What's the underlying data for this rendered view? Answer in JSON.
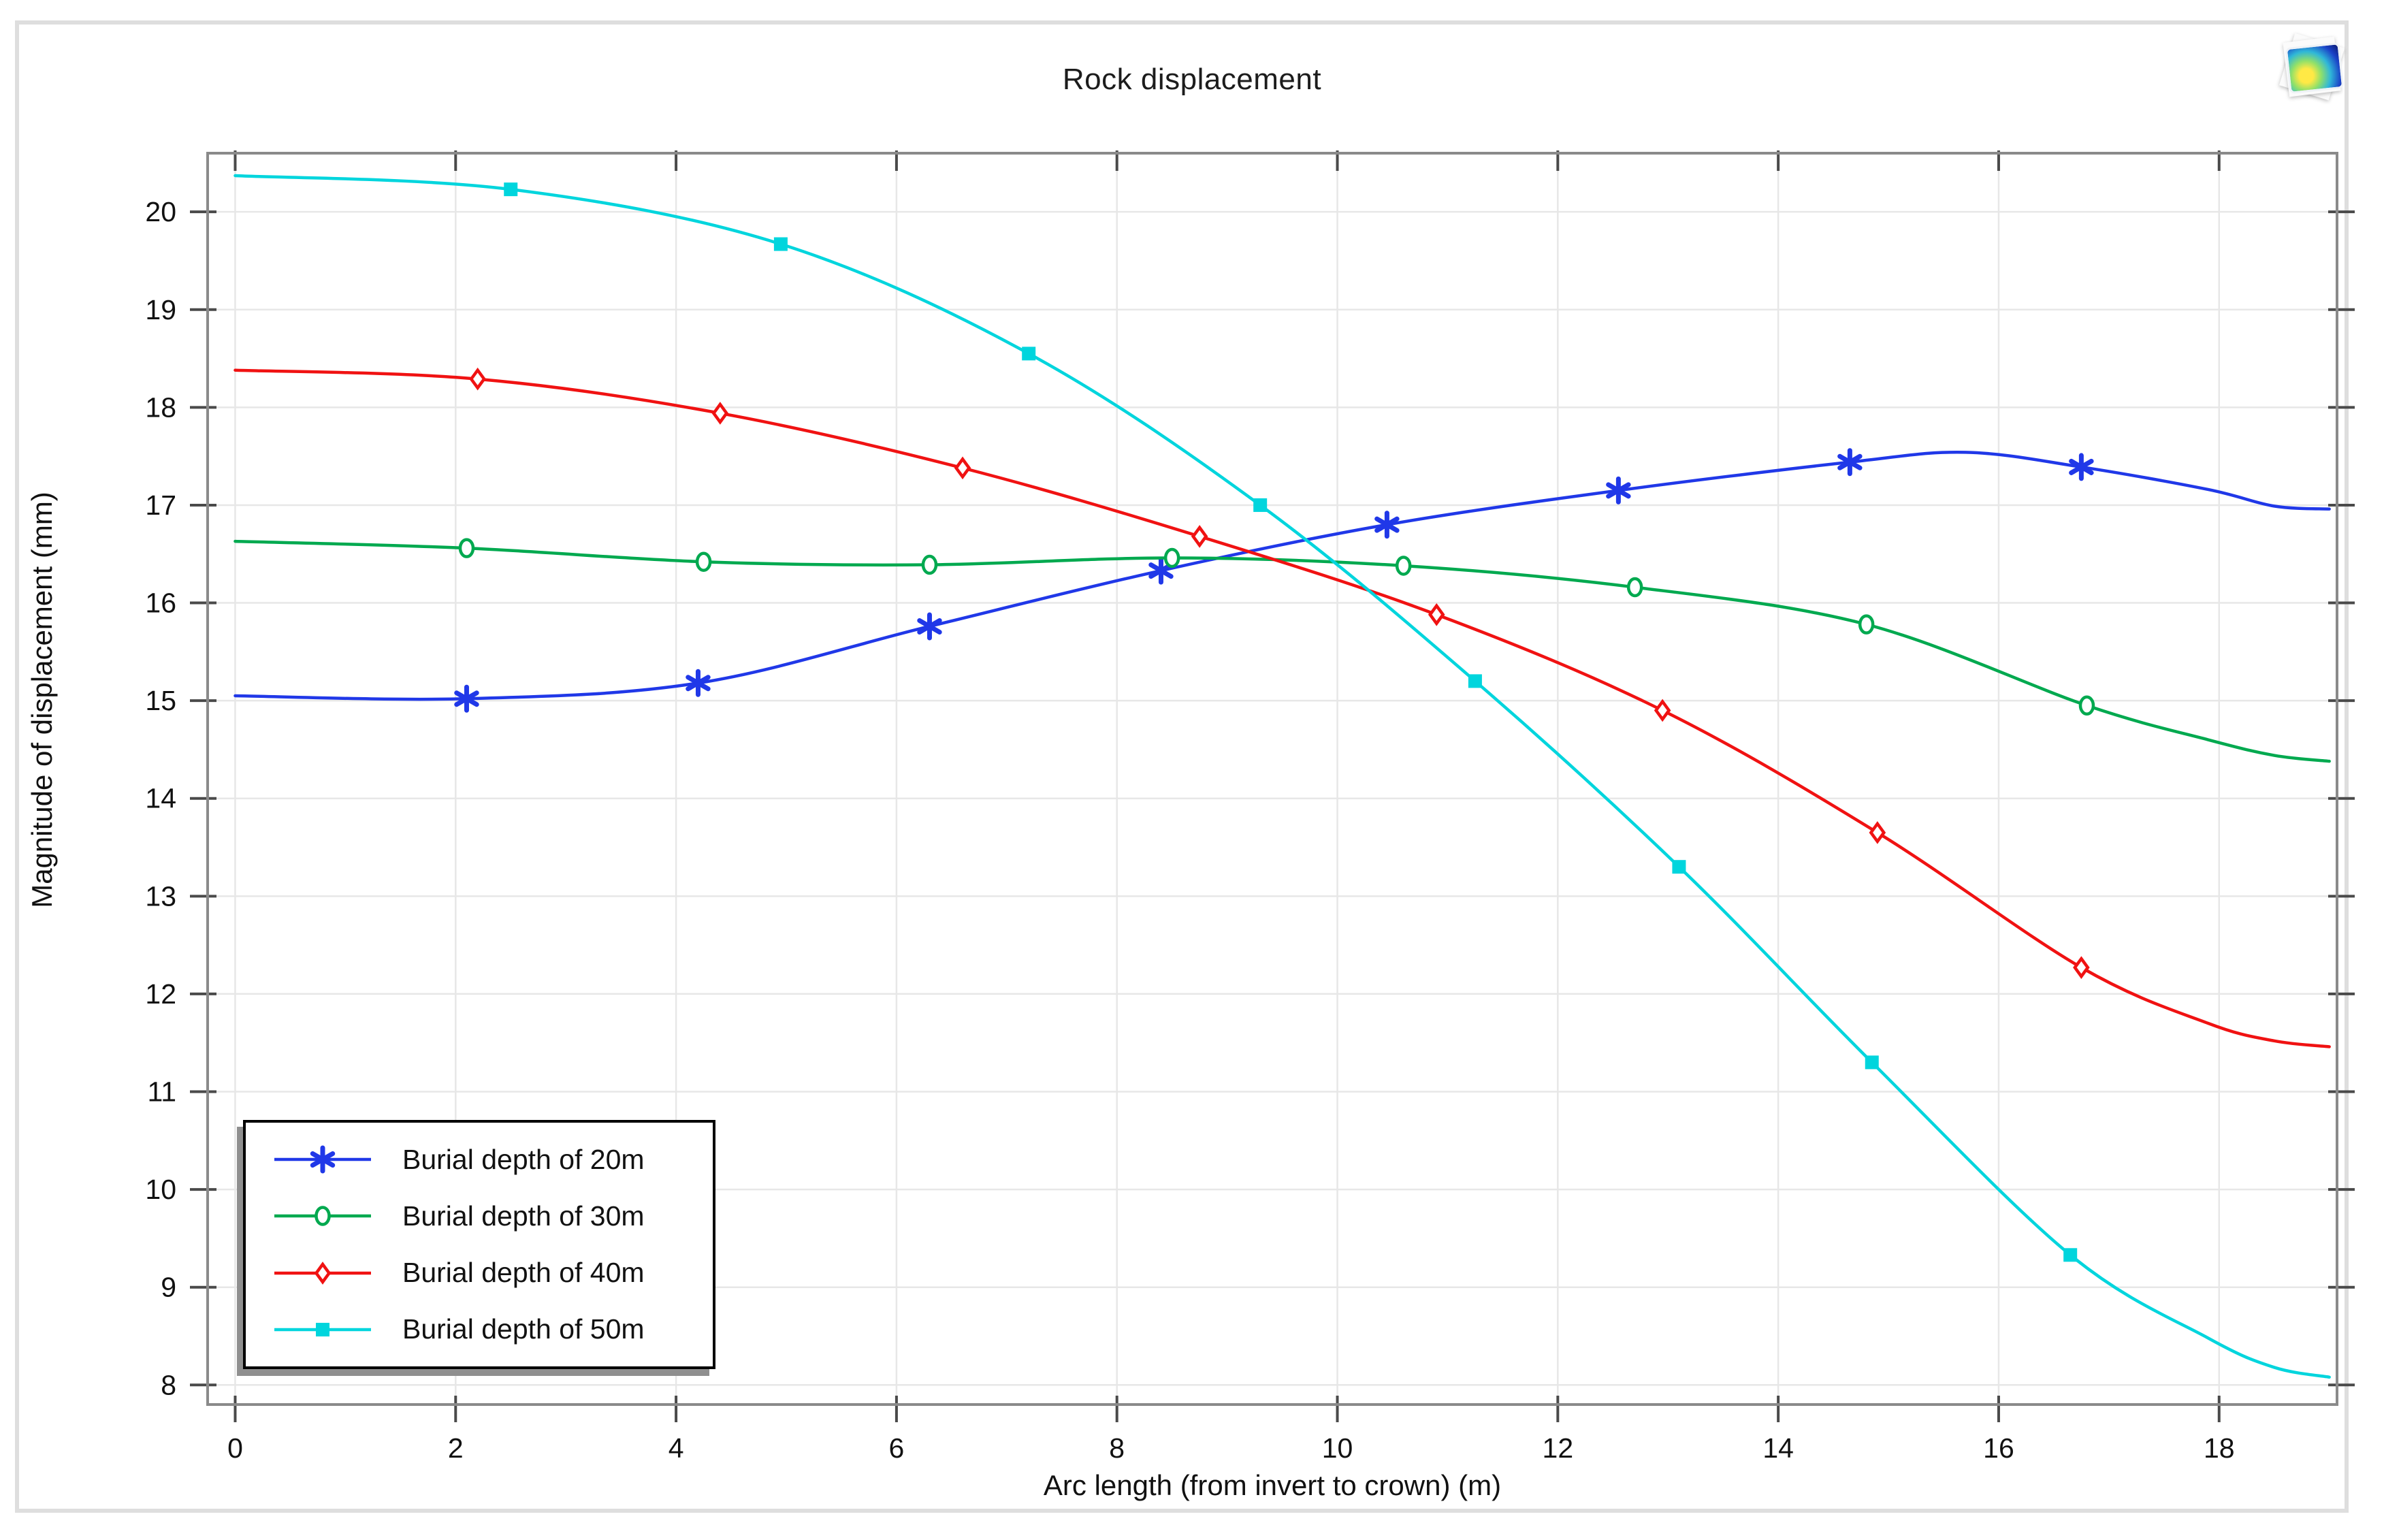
{
  "window": {
    "title": "Rock displacement",
    "icon_name": "comsol-graphics-icon"
  },
  "chart_data": {
    "type": "line",
    "title": "Rock displacement",
    "xlabel": "Arc length (from invert to crown) (m)",
    "ylabel": "Magnitude of displacement (mm)",
    "xlim": [
      -0.25,
      19.07
    ],
    "ylim": [
      7.8,
      20.6
    ],
    "xticks": [
      0,
      2,
      4,
      6,
      8,
      10,
      12,
      14,
      16,
      18
    ],
    "yticks": [
      8,
      9,
      10,
      11,
      12,
      13,
      14,
      15,
      16,
      17,
      18,
      19,
      20
    ],
    "grid": true,
    "legend_position": "bottom-left",
    "colors": {
      "grid": "#e7e7e7",
      "frame": "#8a8a8a",
      "tick": "#4a4a4a",
      "text": "#111111"
    },
    "series": [
      {
        "name": "Burial depth of 20m",
        "color": "#2038e8",
        "marker": "asterisk",
        "points": [
          [
            0,
            15.05
          ],
          [
            2.1,
            15.02
          ],
          [
            4.2,
            15.18
          ],
          [
            6.3,
            15.76
          ],
          [
            8.4,
            16.33
          ],
          [
            10.45,
            16.8
          ],
          [
            12.55,
            17.15
          ],
          [
            14.65,
            17.44
          ],
          [
            15.7,
            17.54
          ],
          [
            16.75,
            17.39
          ],
          [
            17.9,
            17.16
          ],
          [
            18.5,
            16.99
          ],
          [
            19.0,
            16.96
          ]
        ],
        "markers": [
          [
            2.1,
            15.02
          ],
          [
            4.2,
            15.18
          ],
          [
            6.3,
            15.76
          ],
          [
            8.4,
            16.33
          ],
          [
            10.45,
            16.8
          ],
          [
            12.55,
            17.15
          ],
          [
            14.65,
            17.44
          ],
          [
            16.75,
            17.39
          ]
        ]
      },
      {
        "name": "Burial depth of 30m",
        "color": "#00a94f",
        "marker": "circle",
        "points": [
          [
            0,
            16.63
          ],
          [
            2.1,
            16.56
          ],
          [
            4.25,
            16.42
          ],
          [
            6.3,
            16.39
          ],
          [
            8.5,
            16.46
          ],
          [
            10.6,
            16.38
          ],
          [
            12.7,
            16.16
          ],
          [
            14.8,
            15.78
          ],
          [
            16.8,
            14.95
          ],
          [
            17.9,
            14.6
          ],
          [
            18.5,
            14.44
          ],
          [
            19.0,
            14.38
          ]
        ],
        "markers": [
          [
            2.1,
            16.56
          ],
          [
            4.25,
            16.42
          ],
          [
            6.3,
            16.39
          ],
          [
            8.5,
            16.46
          ],
          [
            10.6,
            16.38
          ],
          [
            12.7,
            16.16
          ],
          [
            14.8,
            15.78
          ],
          [
            16.8,
            14.95
          ]
        ]
      },
      {
        "name": "Burial depth of 40m",
        "color": "#f01212",
        "marker": "diamond",
        "points": [
          [
            0,
            18.38
          ],
          [
            2.2,
            18.29
          ],
          [
            4.4,
            17.94
          ],
          [
            6.6,
            17.38
          ],
          [
            8.75,
            16.68
          ],
          [
            10.9,
            15.88
          ],
          [
            12.95,
            14.9
          ],
          [
            14.9,
            13.65
          ],
          [
            16.75,
            12.27
          ],
          [
            17.9,
            11.7
          ],
          [
            18.5,
            11.52
          ],
          [
            19.0,
            11.46
          ]
        ],
        "markers": [
          [
            2.2,
            18.29
          ],
          [
            4.4,
            17.94
          ],
          [
            6.6,
            17.38
          ],
          [
            8.75,
            16.68
          ],
          [
            10.9,
            15.88
          ],
          [
            12.95,
            14.9
          ],
          [
            14.9,
            13.65
          ],
          [
            16.75,
            12.27
          ]
        ]
      },
      {
        "name": "Burial depth of 50m",
        "color": "#00d5dd",
        "marker": "square",
        "points": [
          [
            0,
            20.37
          ],
          [
            2.5,
            20.23
          ],
          [
            4.95,
            19.67
          ],
          [
            7.2,
            18.55
          ],
          [
            9.3,
            17.0
          ],
          [
            11.25,
            15.2
          ],
          [
            13.1,
            13.3
          ],
          [
            14.85,
            11.3
          ],
          [
            16.65,
            9.33
          ],
          [
            17.9,
            8.48
          ],
          [
            18.5,
            8.18
          ],
          [
            19.0,
            8.08
          ]
        ],
        "markers": [
          [
            2.5,
            20.23
          ],
          [
            4.95,
            19.67
          ],
          [
            7.2,
            18.55
          ],
          [
            9.3,
            17.0
          ],
          [
            11.25,
            15.2
          ],
          [
            13.1,
            13.3
          ],
          [
            14.85,
            11.3
          ],
          [
            16.65,
            9.33
          ]
        ]
      }
    ]
  }
}
